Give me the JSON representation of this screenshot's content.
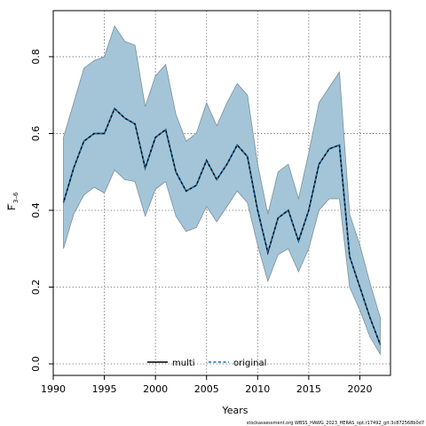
{
  "chart_data": {
    "type": "line",
    "xlabel": "Years",
    "ylabel_main": "F",
    "ylabel_sub": "3–6",
    "xlim": [
      1990,
      2023
    ],
    "ylim": [
      -0.03,
      0.92
    ],
    "xticks": [
      1990,
      1995,
      2000,
      2005,
      2010,
      2015,
      2020
    ],
    "yticks": [
      0.0,
      0.2,
      0.4,
      0.6,
      0.8
    ],
    "ytick_labels": [
      "0.0",
      "0.2",
      "0.4",
      "0.6",
      "0.8"
    ],
    "grid": true,
    "legend_position": "bottom-center",
    "x": [
      1991,
      1992,
      1993,
      1994,
      1995,
      1996,
      1997,
      1998,
      1999,
      2000,
      2001,
      2002,
      2003,
      2004,
      2005,
      2006,
      2007,
      2008,
      2009,
      2010,
      2011,
      2012,
      2013,
      2014,
      2015,
      2016,
      2017,
      2018,
      2019,
      2020,
      2021,
      2022
    ],
    "series": [
      {
        "name": "multi",
        "style": "solid",
        "color": "#000000",
        "values": [
          0.42,
          0.51,
          0.58,
          0.6,
          0.6,
          0.665,
          0.64,
          0.625,
          0.51,
          0.59,
          0.61,
          0.5,
          0.45,
          0.465,
          0.53,
          0.48,
          0.52,
          0.57,
          0.54,
          0.4,
          0.29,
          0.38,
          0.4,
          0.32,
          0.4,
          0.52,
          0.56,
          0.57,
          0.28,
          0.2,
          0.12,
          0.05
        ]
      },
      {
        "name": "original",
        "style": "dashed",
        "color": "#1a6fa8",
        "values": [
          0.42,
          0.51,
          0.58,
          0.6,
          0.6,
          0.665,
          0.64,
          0.625,
          0.51,
          0.59,
          0.61,
          0.5,
          0.45,
          0.465,
          0.53,
          0.48,
          0.52,
          0.57,
          0.54,
          0.4,
          0.29,
          0.38,
          0.4,
          0.32,
          0.4,
          0.52,
          0.56,
          0.57,
          0.28,
          0.2,
          0.12,
          0.05
        ]
      }
    ],
    "band": {
      "color": "#a4c5d8",
      "upper": [
        0.59,
        0.68,
        0.77,
        0.79,
        0.8,
        0.88,
        0.84,
        0.83,
        0.67,
        0.75,
        0.78,
        0.65,
        0.58,
        0.6,
        0.68,
        0.62,
        0.68,
        0.73,
        0.7,
        0.52,
        0.39,
        0.5,
        0.52,
        0.43,
        0.55,
        0.68,
        0.72,
        0.76,
        0.39,
        0.31,
        0.21,
        0.12
      ],
      "lower": [
        0.3,
        0.39,
        0.44,
        0.46,
        0.445,
        0.505,
        0.48,
        0.475,
        0.385,
        0.455,
        0.475,
        0.385,
        0.345,
        0.355,
        0.41,
        0.37,
        0.41,
        0.45,
        0.42,
        0.31,
        0.215,
        0.285,
        0.3,
        0.24,
        0.3,
        0.4,
        0.43,
        0.43,
        0.2,
        0.14,
        0.07,
        0.025
      ]
    },
    "caption": "stockassessment.org WBSS_HAWG_2023_HERAS_opt.r17492_git:3c872568b0d7"
  }
}
